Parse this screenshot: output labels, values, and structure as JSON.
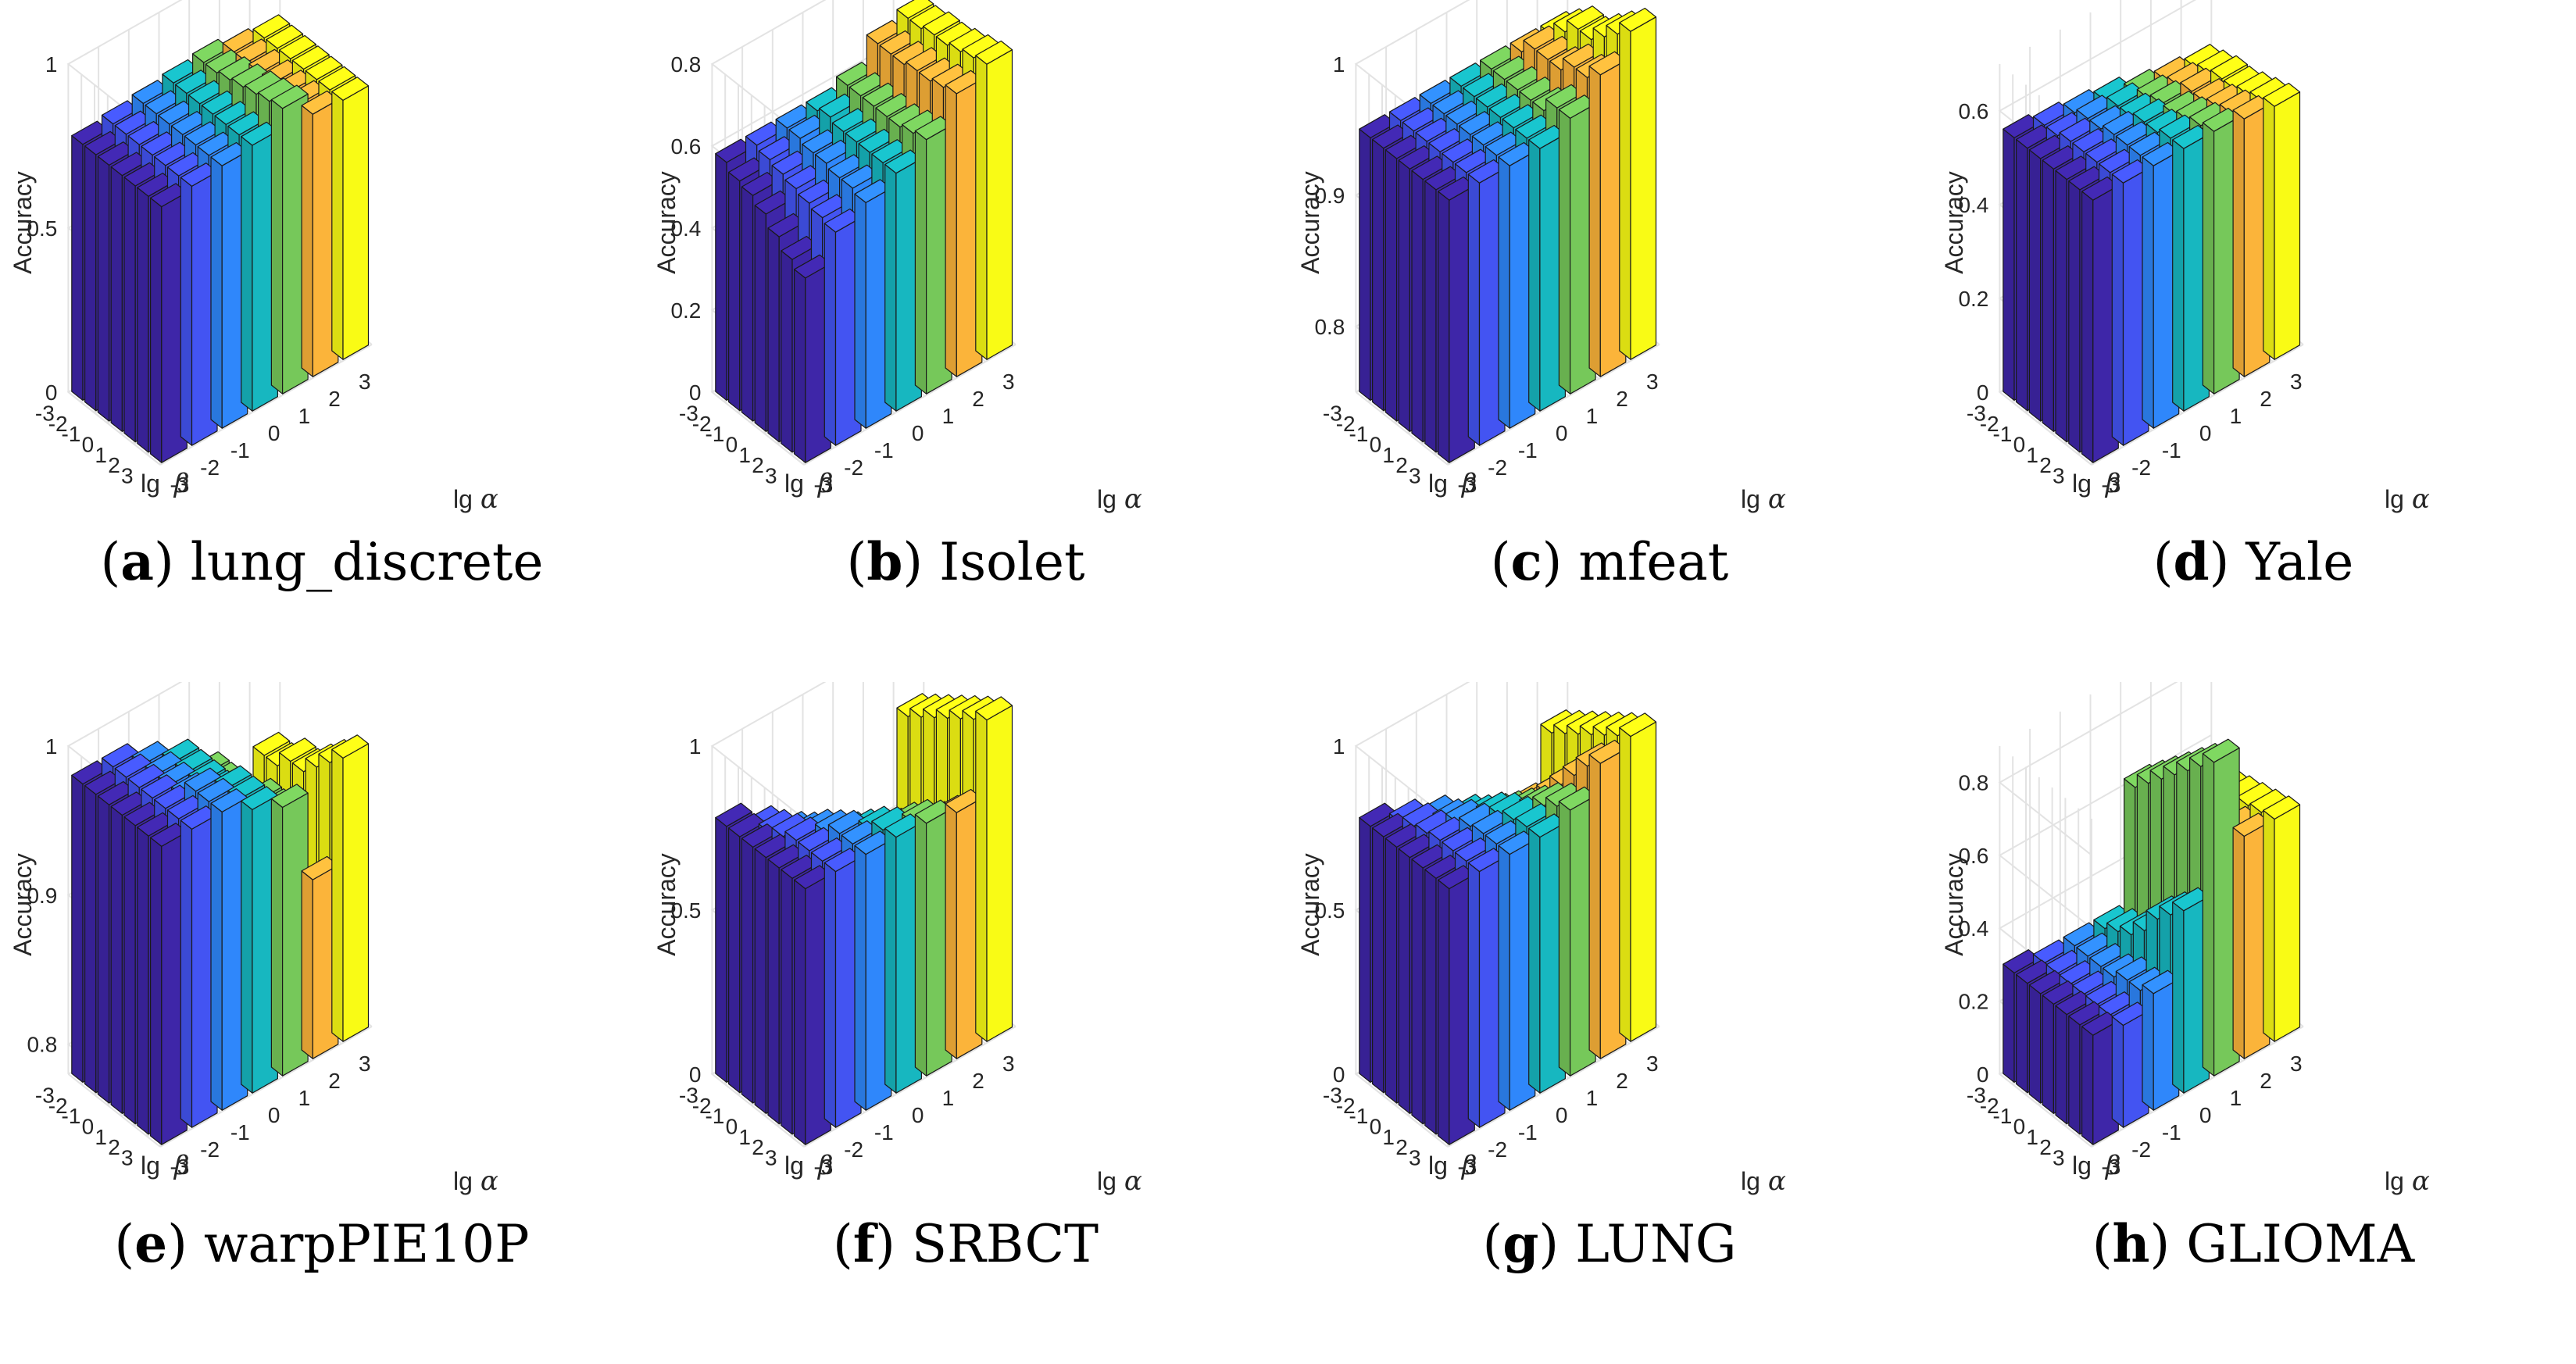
{
  "figure": {
    "colors": [
      "#3e26a8",
      "#4354f2",
      "#2f87fb",
      "#17b7c0",
      "#76c85a",
      "#fbb43a",
      "#f9fb15"
    ],
    "tick_values": [
      "-3",
      "-2",
      "-1",
      "0",
      "1",
      "2",
      "3"
    ],
    "z_axis_label": "Accuracy",
    "beta_label_prefix": "lg",
    "beta_symbol": "β",
    "alpha_label_prefix": "lg",
    "alpha_symbol": "α"
  },
  "chart_data": [
    {
      "letter": "a",
      "name": "lung_discrete",
      "type": "bar3d",
      "zlim": [
        0,
        1
      ],
      "zticks": [
        "0",
        "0.5",
        "1"
      ],
      "zlabel": "Accuracy",
      "xlabel": "lg α",
      "ylabel": "lg β",
      "alpha": [
        "-3",
        "-2",
        "-1",
        "0",
        "1",
        "2",
        "3"
      ],
      "beta": [
        "-3",
        "-2",
        "-1",
        "0",
        "1",
        "2",
        "3"
      ],
      "values": [
        [
          0.78,
          0.79,
          0.8,
          0.81,
          0.82,
          0.8,
          0.79
        ],
        [
          0.78,
          0.79,
          0.8,
          0.81,
          0.82,
          0.8,
          0.79
        ],
        [
          0.78,
          0.79,
          0.8,
          0.81,
          0.83,
          0.8,
          0.79
        ],
        [
          0.78,
          0.79,
          0.8,
          0.81,
          0.84,
          0.8,
          0.79
        ],
        [
          0.78,
          0.79,
          0.8,
          0.81,
          0.85,
          0.8,
          0.79
        ],
        [
          0.78,
          0.79,
          0.8,
          0.81,
          0.86,
          0.8,
          0.79
        ],
        [
          0.78,
          0.79,
          0.8,
          0.81,
          0.87,
          0.8,
          0.79
        ]
      ]
    },
    {
      "letter": "b",
      "name": "Isolet",
      "type": "bar3d",
      "zlim": [
        0,
        0.8
      ],
      "zticks": [
        "0",
        "0.2",
        "0.4",
        "0.6",
        "0.8"
      ],
      "zlabel": "Accuracy",
      "xlabel": "lg α",
      "ylabel": "lg β",
      "alpha": [
        "-3",
        "-2",
        "-1",
        "0",
        "1",
        "2",
        "3"
      ],
      "beta": [
        "-3",
        "-2",
        "-1",
        "0",
        "1",
        "2",
        "3"
      ],
      "values": [
        [
          0.58,
          0.58,
          0.58,
          0.58,
          0.6,
          0.66,
          0.68
        ],
        [
          0.56,
          0.57,
          0.58,
          0.59,
          0.6,
          0.66,
          0.68
        ],
        [
          0.55,
          0.56,
          0.57,
          0.58,
          0.6,
          0.66,
          0.69
        ],
        [
          0.53,
          0.55,
          0.57,
          0.58,
          0.6,
          0.67,
          0.69
        ],
        [
          0.5,
          0.54,
          0.56,
          0.58,
          0.6,
          0.67,
          0.7
        ],
        [
          0.47,
          0.53,
          0.56,
          0.58,
          0.61,
          0.68,
          0.71
        ],
        [
          0.45,
          0.52,
          0.55,
          0.58,
          0.62,
          0.69,
          0.72
        ]
      ]
    },
    {
      "letter": "c",
      "name": "mfeat",
      "type": "bar3d",
      "zlim": [
        0.75,
        1
      ],
      "zticks": [
        "0.8",
        "0.9",
        "1"
      ],
      "zlabel": "Accuracy",
      "xlabel": "lg α",
      "ylabel": "lg β",
      "alpha": [
        "-3",
        "-2",
        "-1",
        "0",
        "1",
        "2",
        "3"
      ],
      "beta": [
        "-3",
        "-2",
        "-1",
        "0",
        "1",
        "2",
        "3"
      ],
      "values": [
        [
          0.95,
          0.95,
          0.95,
          0.95,
          0.95,
          0.95,
          0.95
        ],
        [
          0.95,
          0.95,
          0.95,
          0.95,
          0.95,
          0.96,
          0.96
        ],
        [
          0.95,
          0.95,
          0.95,
          0.95,
          0.95,
          0.96,
          0.97
        ],
        [
          0.95,
          0.95,
          0.95,
          0.95,
          0.95,
          0.96,
          0.97
        ],
        [
          0.95,
          0.95,
          0.95,
          0.95,
          0.95,
          0.97,
          0.98
        ],
        [
          0.95,
          0.95,
          0.95,
          0.95,
          0.96,
          0.97,
          0.99
        ],
        [
          0.95,
          0.95,
          0.95,
          0.95,
          0.96,
          0.98,
          1.0
        ]
      ]
    },
    {
      "letter": "d",
      "name": "Yale",
      "type": "bar3d",
      "zlim": [
        0,
        0.7
      ],
      "zticks": [
        "0",
        "0.2",
        "0.4",
        "0.6"
      ],
      "zlabel": "Accuracy",
      "xlabel": "lg α",
      "ylabel": "lg β",
      "alpha": [
        "-3",
        "-2",
        "-1",
        "0",
        "1",
        "2",
        "3"
      ],
      "beta": [
        "-3",
        "-2",
        "-1",
        "0",
        "1",
        "2",
        "3"
      ],
      "values": [
        [
          0.56,
          0.55,
          0.54,
          0.53,
          0.51,
          0.5,
          0.49
        ],
        [
          0.56,
          0.55,
          0.55,
          0.54,
          0.52,
          0.51,
          0.5
        ],
        [
          0.56,
          0.56,
          0.55,
          0.54,
          0.53,
          0.52,
          0.51
        ],
        [
          0.56,
          0.56,
          0.56,
          0.55,
          0.53,
          0.52,
          0.51
        ],
        [
          0.56,
          0.56,
          0.56,
          0.55,
          0.54,
          0.53,
          0.52
        ],
        [
          0.56,
          0.56,
          0.56,
          0.56,
          0.55,
          0.54,
          0.53
        ],
        [
          0.56,
          0.56,
          0.56,
          0.56,
          0.56,
          0.55,
          0.54
        ]
      ]
    },
    {
      "letter": "e",
      "name": "warpPIE10P",
      "type": "bar3d",
      "zlim": [
        0.78,
        1
      ],
      "zticks": [
        "0.8",
        "0.9",
        "1"
      ],
      "zlabel": "Accuracy",
      "xlabel": "lg α",
      "ylabel": "lg β",
      "alpha": [
        "-3",
        "-2",
        "-1",
        "0",
        "1",
        "2",
        "3"
      ],
      "beta": [
        "-3",
        "-2",
        "-1",
        "0",
        "1",
        "2",
        "3"
      ],
      "values": [
        [
          0.98,
          0.98,
          0.97,
          0.96,
          0.94,
          0.9,
          0.93
        ],
        [
          0.98,
          0.98,
          0.97,
          0.96,
          0.94,
          0.89,
          0.93
        ],
        [
          0.98,
          0.98,
          0.97,
          0.96,
          0.94,
          0.89,
          0.94
        ],
        [
          0.98,
          0.98,
          0.97,
          0.96,
          0.94,
          0.88,
          0.94
        ],
        [
          0.98,
          0.98,
          0.98,
          0.97,
          0.95,
          0.88,
          0.95
        ],
        [
          0.98,
          0.98,
          0.98,
          0.97,
          0.95,
          0.88,
          0.96
        ],
        [
          0.98,
          0.98,
          0.98,
          0.97,
          0.96,
          0.9,
          0.97
        ]
      ]
    },
    {
      "letter": "f",
      "name": "SRBCT",
      "type": "bar3d",
      "zlim": [
        0,
        1
      ],
      "zticks": [
        "0",
        "0.5",
        "1"
      ],
      "zlabel": "Accuracy",
      "xlabel": "lg α",
      "ylabel": "lg β",
      "alpha": [
        "-3",
        "-2",
        "-1",
        "0",
        "1",
        "2",
        "3"
      ],
      "beta": [
        "-3",
        "-2",
        "-1",
        "0",
        "1",
        "2",
        "3"
      ],
      "values": [
        [
          0.78,
          0.72,
          0.65,
          0.58,
          0.52,
          0.45,
          0.8
        ],
        [
          0.78,
          0.74,
          0.68,
          0.62,
          0.56,
          0.5,
          0.83
        ],
        [
          0.78,
          0.76,
          0.72,
          0.66,
          0.6,
          0.55,
          0.86
        ],
        [
          0.78,
          0.78,
          0.75,
          0.7,
          0.65,
          0.6,
          0.89
        ],
        [
          0.78,
          0.78,
          0.78,
          0.74,
          0.7,
          0.65,
          0.92
        ],
        [
          0.78,
          0.78,
          0.78,
          0.77,
          0.74,
          0.7,
          0.95
        ],
        [
          0.78,
          0.78,
          0.78,
          0.78,
          0.77,
          0.75,
          0.98
        ]
      ]
    },
    {
      "letter": "g",
      "name": "LUNG",
      "type": "bar3d",
      "zlim": [
        0,
        1
      ],
      "zticks": [
        "0",
        "0.5",
        "1"
      ],
      "zlabel": "Accuracy",
      "xlabel": "lg α",
      "ylabel": "lg β",
      "alpha": [
        "-3",
        "-2",
        "-1",
        "0",
        "1",
        "2",
        "3"
      ],
      "beta": [
        "-3",
        "-2",
        "-1",
        "0",
        "1",
        "2",
        "3"
      ],
      "values": [
        [
          0.78,
          0.74,
          0.7,
          0.65,
          0.6,
          0.58,
          0.75
        ],
        [
          0.78,
          0.76,
          0.72,
          0.68,
          0.64,
          0.62,
          0.78
        ],
        [
          0.78,
          0.77,
          0.75,
          0.72,
          0.68,
          0.68,
          0.81
        ],
        [
          0.78,
          0.78,
          0.77,
          0.75,
          0.72,
          0.74,
          0.84
        ],
        [
          0.78,
          0.78,
          0.78,
          0.77,
          0.76,
          0.8,
          0.87
        ],
        [
          0.78,
          0.78,
          0.78,
          0.78,
          0.79,
          0.86,
          0.9
        ],
        [
          0.78,
          0.78,
          0.78,
          0.78,
          0.81,
          0.9,
          0.93
        ]
      ]
    },
    {
      "letter": "h",
      "name": "GLIOMA",
      "type": "bar3d",
      "zlim": [
        0,
        0.9
      ],
      "zticks": [
        "0",
        "0.2",
        "0.4",
        "0.6",
        "0.8"
      ],
      "zlabel": "Accuracy",
      "xlabel": "lg α",
      "ylabel": "lg β",
      "alpha": [
        "-3",
        "-2",
        "-1",
        "0",
        "1",
        "2",
        "3"
      ],
      "beta": [
        "-3",
        "-2",
        "-1",
        "0",
        "1",
        "2",
        "3"
      ],
      "values": [
        [
          0.3,
          0.28,
          0.28,
          0.28,
          0.62,
          0.55,
          0.55
        ],
        [
          0.3,
          0.28,
          0.28,
          0.3,
          0.66,
          0.56,
          0.56
        ],
        [
          0.3,
          0.28,
          0.28,
          0.32,
          0.7,
          0.57,
          0.57
        ],
        [
          0.3,
          0.28,
          0.28,
          0.36,
          0.74,
          0.58,
          0.58
        ],
        [
          0.3,
          0.28,
          0.3,
          0.42,
          0.78,
          0.59,
          0.59
        ],
        [
          0.3,
          0.28,
          0.3,
          0.46,
          0.82,
          0.6,
          0.6
        ],
        [
          0.3,
          0.28,
          0.32,
          0.5,
          0.86,
          0.61,
          0.61
        ]
      ]
    }
  ]
}
